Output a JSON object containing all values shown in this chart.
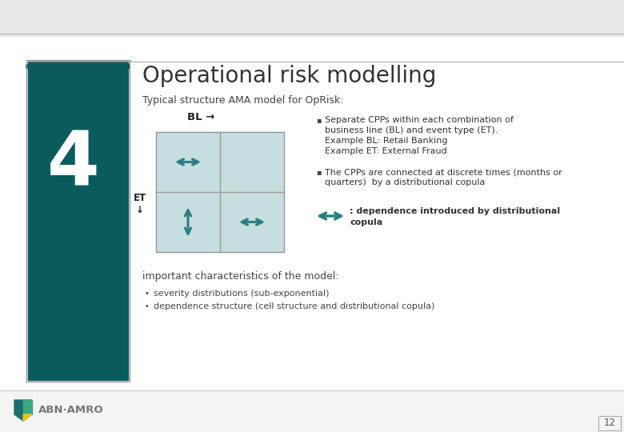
{
  "title": "Operational risk modelling",
  "subtitle": "Typical structure AMA model for OpRisk:",
  "number": "4",
  "sidebar_color": "#0a5c5c",
  "bg_color": "#ffffff",
  "grid_fill": "#c5dede",
  "grid_line_color": "#7aaeae",
  "arrow_color": "#2a7f7f",
  "bl_label": "BL →",
  "et_label": "ET\n↓",
  "bullet1_lines": [
    "Separate CPPs within each combination of",
    "business line (BL) and event type (ET).",
    "Example BL: Retail Banking",
    "Example ET: External Fraud"
  ],
  "bullet2": "The CPPs are connected at discrete times (months or\nquarters)  by a distributional copula",
  "legend_text": ": dependence introduced by distributional\ncopula",
  "important_header": "important characteristics of the model:",
  "bullet3": "severity distributions (sub-exponential)",
  "bullet4": "dependence structure (cell structure and distributional copula)",
  "page_num": "12",
  "title_fontsize": 20,
  "body_fontsize": 8.0,
  "subtitle_fontsize": 9
}
